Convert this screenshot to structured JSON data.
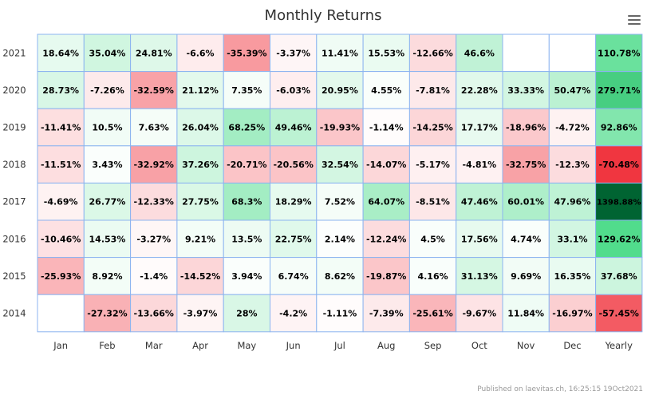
{
  "chart_data": {
    "type": "heatmap",
    "title": "Monthly Returns",
    "x_categories": [
      "Jan",
      "Feb",
      "Mar",
      "Apr",
      "May",
      "Jun",
      "Jul",
      "Aug",
      "Sep",
      "Oct",
      "Nov",
      "Dec",
      "Yearly"
    ],
    "y_categories": [
      "2021",
      "2020",
      "2019",
      "2018",
      "2017",
      "2016",
      "2015",
      "2014"
    ],
    "rows": [
      {
        "year": "2021",
        "values": [
          18.64,
          35.04,
          24.81,
          -6.6,
          -35.39,
          -3.37,
          11.41,
          15.53,
          -12.66,
          46.6,
          null,
          null,
          110.78
        ],
        "labels": [
          "18.64%",
          "35.04%",
          "24.81%",
          "-6.6%",
          "-35.39%",
          "-3.37%",
          "11.41%",
          "15.53%",
          "-12.66%",
          "46.6%",
          "",
          "",
          "110.78%"
        ]
      },
      {
        "year": "2020",
        "values": [
          28.73,
          -7.26,
          -32.59,
          21.12,
          7.35,
          -6.03,
          20.95,
          4.55,
          -7.81,
          22.28,
          33.33,
          50.47,
          279.71
        ],
        "labels": [
          "28.73%",
          "-7.26%",
          "-32.59%",
          "21.12%",
          "7.35%",
          "-6.03%",
          "20.95%",
          "4.55%",
          "-7.81%",
          "22.28%",
          "33.33%",
          "50.47%",
          "279.71%"
        ]
      },
      {
        "year": "2019",
        "values": [
          -11.41,
          10.5,
          7.63,
          26.04,
          68.25,
          49.46,
          -19.93,
          -1.14,
          -14.25,
          17.17,
          -18.96,
          -4.72,
          92.86
        ],
        "labels": [
          "-11.41%",
          "10.5%",
          "7.63%",
          "26.04%",
          "68.25%",
          "49.46%",
          "-19.93%",
          "-1.14%",
          "-14.25%",
          "17.17%",
          "-18.96%",
          "-4.72%",
          "92.86%"
        ]
      },
      {
        "year": "2018",
        "values": [
          -11.51,
          3.43,
          -32.92,
          37.26,
          -20.71,
          -20.56,
          32.54,
          -14.07,
          -5.17,
          -4.81,
          -32.75,
          -12.3,
          -70.48
        ],
        "labels": [
          "-11.51%",
          "3.43%",
          "-32.92%",
          "37.26%",
          "-20.71%",
          "-20.56%",
          "32.54%",
          "-14.07%",
          "-5.17%",
          "-4.81%",
          "-32.75%",
          "-12.3%",
          "-70.48%"
        ]
      },
      {
        "year": "2017",
        "values": [
          -4.69,
          26.77,
          -12.33,
          27.75,
          68.3,
          18.29,
          7.52,
          64.07,
          -8.51,
          47.46,
          60.01,
          47.96,
          1398.88
        ],
        "labels": [
          "-4.69%",
          "26.77%",
          "-12.33%",
          "27.75%",
          "68.3%",
          "18.29%",
          "7.52%",
          "64.07%",
          "-8.51%",
          "47.46%",
          "60.01%",
          "47.96%",
          "1398.88%"
        ]
      },
      {
        "year": "2016",
        "values": [
          -10.46,
          14.53,
          -3.27,
          9.21,
          13.5,
          22.75,
          2.14,
          -12.24,
          4.5,
          17.56,
          4.74,
          33.1,
          129.62
        ],
        "labels": [
          "-10.46%",
          "14.53%",
          "-3.27%",
          "9.21%",
          "13.5%",
          "22.75%",
          "2.14%",
          "-12.24%",
          "4.5%",
          "17.56%",
          "4.74%",
          "33.1%",
          "129.62%"
        ]
      },
      {
        "year": "2015",
        "values": [
          -25.93,
          8.92,
          -1.4,
          -14.52,
          3.94,
          6.74,
          8.62,
          -19.87,
          4.16,
          31.13,
          9.69,
          16.35,
          37.68
        ],
        "labels": [
          "-25.93%",
          "8.92%",
          "-1.4%",
          "-14.52%",
          "3.94%",
          "6.74%",
          "8.62%",
          "-19.87%",
          "4.16%",
          "31.13%",
          "9.69%",
          "16.35%",
          "37.68%"
        ]
      },
      {
        "year": "2014",
        "values": [
          null,
          -27.32,
          -13.66,
          -3.97,
          28,
          -4.2,
          -1.11,
          -7.39,
          -25.61,
          -9.67,
          11.84,
          -16.97,
          -57.45
        ],
        "labels": [
          "",
          "-27.32%",
          "-13.66%",
          "-3.97%",
          "28%",
          "-4.2%",
          "-1.11%",
          "-7.39%",
          "-25.61%",
          "-9.67%",
          "11.84%",
          "-16.97%",
          "-57.45%"
        ]
      }
    ],
    "colors": {
      "negative": "#f0323c",
      "positive": "#50dc8c",
      "strong_positive": "#006432",
      "border": "#8cb4f0"
    }
  },
  "credits": "Published on laevitas.ch, 16:25:15 19Oct2021"
}
